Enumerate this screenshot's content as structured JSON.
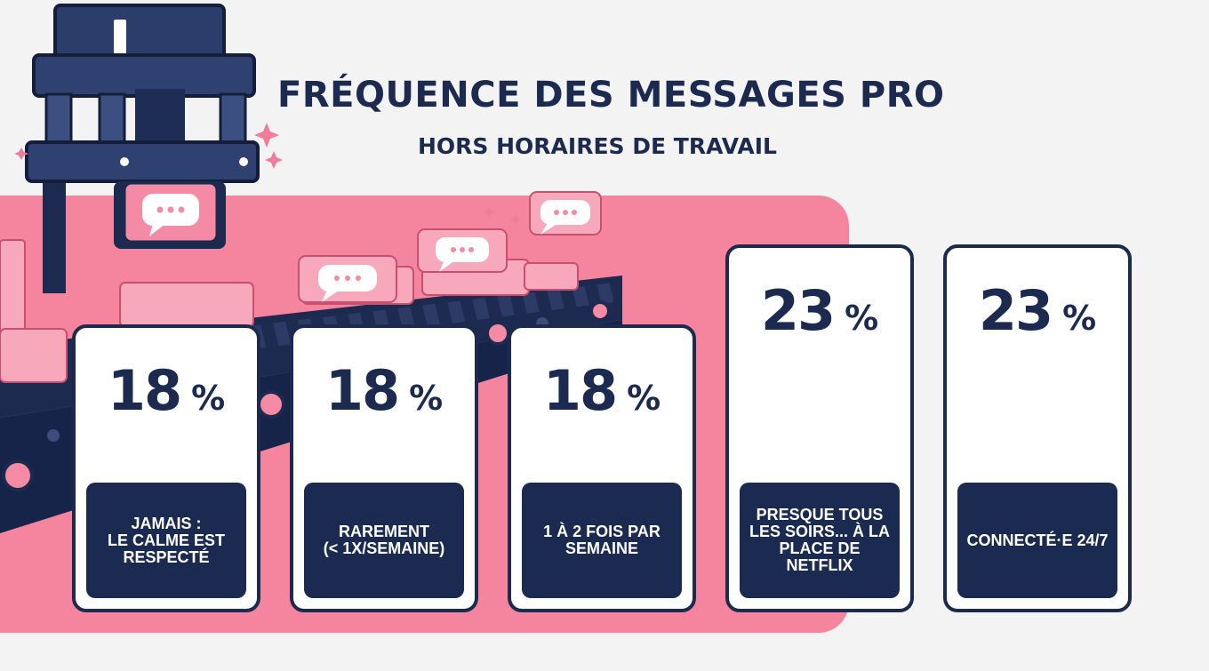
{
  "header": {
    "title": "FRÉQUENCE DES MESSAGES PRO",
    "subtitle": "HORS HORAIRES DE TRAVAIL"
  },
  "colors": {
    "navy": "#1b2a4e",
    "pink": "#f5859f",
    "background": "#f3f3f3",
    "card": "#ffffff"
  },
  "icons": [
    "machine-press-icon",
    "conveyor-belt-icon",
    "chat-bubble-icon",
    "sparkle-icon"
  ],
  "chart_data": {
    "type": "table",
    "title": "FRÉQUENCE DES MESSAGES PRO",
    "subtitle": "HORS HORAIRES DE TRAVAIL",
    "unit": "%",
    "categories": [
      "JAMAIS :\nLE CALME EST RESPECTÉ",
      "RAREMENT\n(< 1X/SEMAINE)",
      "1 À 2 FOIS PAR SEMAINE",
      "PRESQUE TOUS LES SOIRS... À LA PLACE DE NETFLIX",
      "CONNECTÉ·E 24/7"
    ],
    "values": [
      18,
      18,
      18,
      23,
      23
    ],
    "value_labels": [
      "18",
      "18",
      "18",
      "23",
      "23"
    ],
    "percent_sign": "%"
  }
}
